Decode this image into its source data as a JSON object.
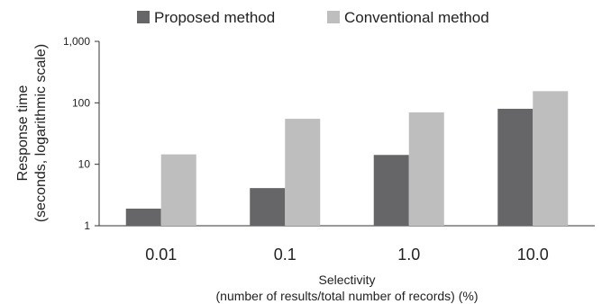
{
  "chart_data": {
    "type": "bar",
    "categories": [
      "0.01",
      "0.1",
      "1.0",
      "10.0"
    ],
    "series": [
      {
        "name": "Proposed method",
        "values": [
          1.9,
          4.1,
          14.2,
          80
        ],
        "color": "#666668"
      },
      {
        "name": "Conventional method",
        "values": [
          14.5,
          55,
          70,
          155
        ],
        "color": "#bebebe"
      }
    ],
    "yscale": "log",
    "ylim": [
      1,
      1000
    ],
    "yticks": [
      1,
      10,
      100,
      1000
    ],
    "ytick_labels": [
      "1",
      "10",
      "100",
      "1,000"
    ],
    "ylabel_lines": [
      "Response time",
      "(seconds, logarithmic scale)"
    ],
    "xlabel_lines": [
      "Selectivity",
      "(number of results/total number of records) (%)"
    ],
    "legend_position": "top",
    "grid": false
  }
}
